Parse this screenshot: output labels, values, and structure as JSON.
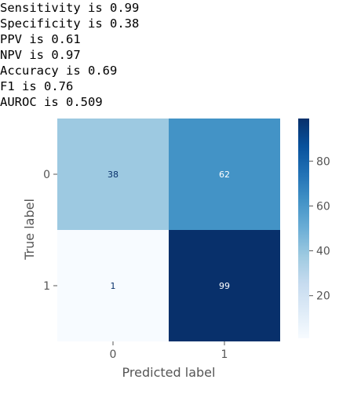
{
  "metrics": [
    {
      "label": "Sensitivity",
      "value": "0.99"
    },
    {
      "label": "Specificity",
      "value": "0.38"
    },
    {
      "label": "PPV",
      "value": "0.61"
    },
    {
      "label": "NPV",
      "value": "0.97"
    },
    {
      "label": "Accuracy",
      "value": "0.69"
    },
    {
      "label": "F1",
      "value": "0.76"
    },
    {
      "label": "AUROC",
      "value": "0.509"
    }
  ],
  "chart_data": {
    "type": "heatmap",
    "title": "",
    "xlabel": "Predicted label",
    "ylabel": "True label",
    "x_categories": [
      "0",
      "1"
    ],
    "y_categories": [
      "0",
      "1"
    ],
    "values": [
      [
        38,
        62
      ],
      [
        1,
        99
      ]
    ],
    "colormap": "Blues",
    "vmin": 1,
    "vmax": 99,
    "colorbar": {
      "ticks": [
        20,
        40,
        60,
        80
      ],
      "position": "right"
    },
    "grid": false
  }
}
